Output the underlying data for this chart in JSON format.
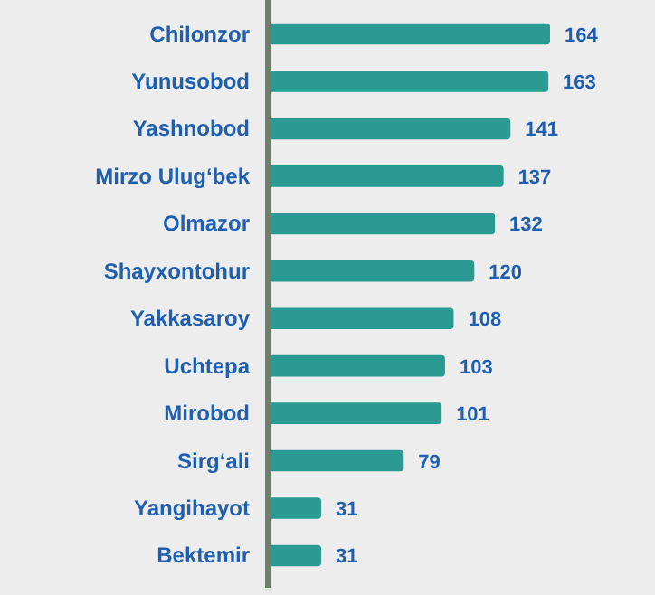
{
  "chart_data": {
    "type": "bar",
    "orientation": "horizontal",
    "categories": [
      "Chilonzor",
      "Yunusobod",
      "Yashnobod",
      "Mirzo Ulug‘bek",
      "Olmazor",
      "Shayxontohur",
      "Yakkasaroy",
      "Uchtepa",
      "Mirobod",
      "Sirg‘ali",
      "Yangihayot",
      "Bektemir"
    ],
    "values": [
      164,
      163,
      141,
      137,
      132,
      120,
      108,
      103,
      101,
      79,
      31,
      31
    ],
    "color": "#2a9a93",
    "data_labels": true
  }
}
